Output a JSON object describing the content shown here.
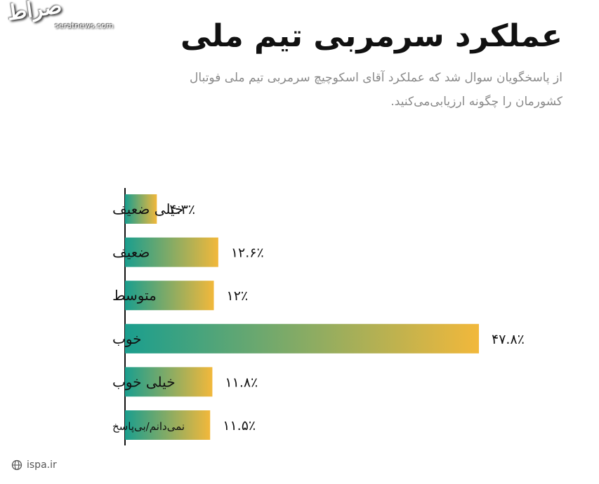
{
  "watermark": {
    "script": "صراط",
    "site": "seratnews.com"
  },
  "header": {
    "title": "عملکرد سرمربی تیم ملی",
    "subtitle": "از پاسخگویان سوال شد که عملکرد آقای اسکوچیچ سرمربی تیم ملی فوتبال کشورمان را چگونه ارزیابی‌می‌کنید."
  },
  "chart_data": {
    "type": "bar",
    "orientation": "horizontal",
    "categories": [
      "خیلی ضعیف",
      "ضعیف",
      "متوسط",
      "خوب",
      "خیلی خوب",
      "نمی‌دانم/بی‌پاسخ"
    ],
    "values": [
      4.3,
      12.6,
      12,
      47.8,
      11.8,
      11.5
    ],
    "value_labels": [
      "۴.۳٪",
      "۱۲.۶٪",
      "۱۲٪",
      "۴۷.۸٪",
      "۱۱.۸٪",
      "۱۱.۵٪"
    ],
    "xlim": [
      0,
      47.8
    ],
    "grid": false,
    "colors": {
      "bar_start": "#1a9e8e",
      "bar_end": "#f2b83b",
      "axis": "#111111",
      "label": "#111111"
    }
  },
  "footer": {
    "source": "ispa.ir",
    "icon": "globe-icon"
  }
}
